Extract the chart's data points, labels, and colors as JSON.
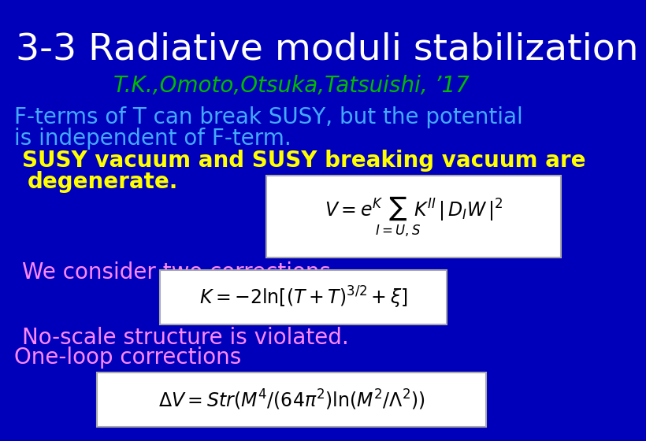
{
  "background_color": "#0000BB",
  "title": "3-3 Radiative moduli stabilization",
  "title_color": "#FFFFFF",
  "title_fontsize": 34,
  "subtitle": "T.K.,Omoto,Otsuka,Tatsuishi, ’17",
  "subtitle_color": "#00BB00",
  "subtitle_fontsize": 20,
  "line1": "F-terms of T can break SUSY, but the potential",
  "line2": "is independent of F-term.",
  "line_color": "#44AAFF",
  "line_fontsize": 20,
  "yellow_line1": "SUSY vacuum and SUSY breaking vacuum are",
  "yellow_line2": "degenerate.",
  "yellow_color": "#FFFF00",
  "yellow_fontsize": 20,
  "pink_line1": "We consider two corrections.",
  "pink_line2": "No-scale structure is violated.",
  "pink_line3": "One-loop corrections",
  "pink_color": "#FF88FF",
  "pink_fontsize": 20,
  "eq_fontsize": 17,
  "eq_box_facecolor": "#FFFFFF",
  "eq_text_color": "#000000",
  "eq_border_color": "#AAAAAA"
}
